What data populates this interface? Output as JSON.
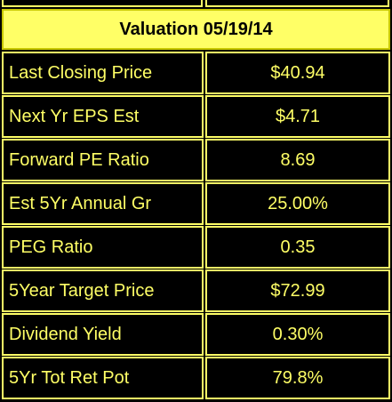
{
  "header": {
    "title": "Valuation 05/19/14"
  },
  "rows": [
    {
      "label": "Last Closing Price",
      "value": "$40.94"
    },
    {
      "label": "Next Yr EPS Est",
      "value": "$4.71"
    },
    {
      "label": "Forward PE Ratio",
      "value": "8.69"
    },
    {
      "label": "Est 5Yr Annual Gr",
      "value": "25.00%"
    },
    {
      "label": "PEG Ratio",
      "value": "0.35"
    },
    {
      "label": "5Year Target Price",
      "value": "$72.99"
    },
    {
      "label": "Dividend Yield",
      "value": "0.30%"
    },
    {
      "label": "5Yr Tot Ret Pot",
      "value": "79.8%"
    }
  ],
  "colors": {
    "background": "#000000",
    "accent": "#ffff66",
    "border": "#ffff66"
  }
}
